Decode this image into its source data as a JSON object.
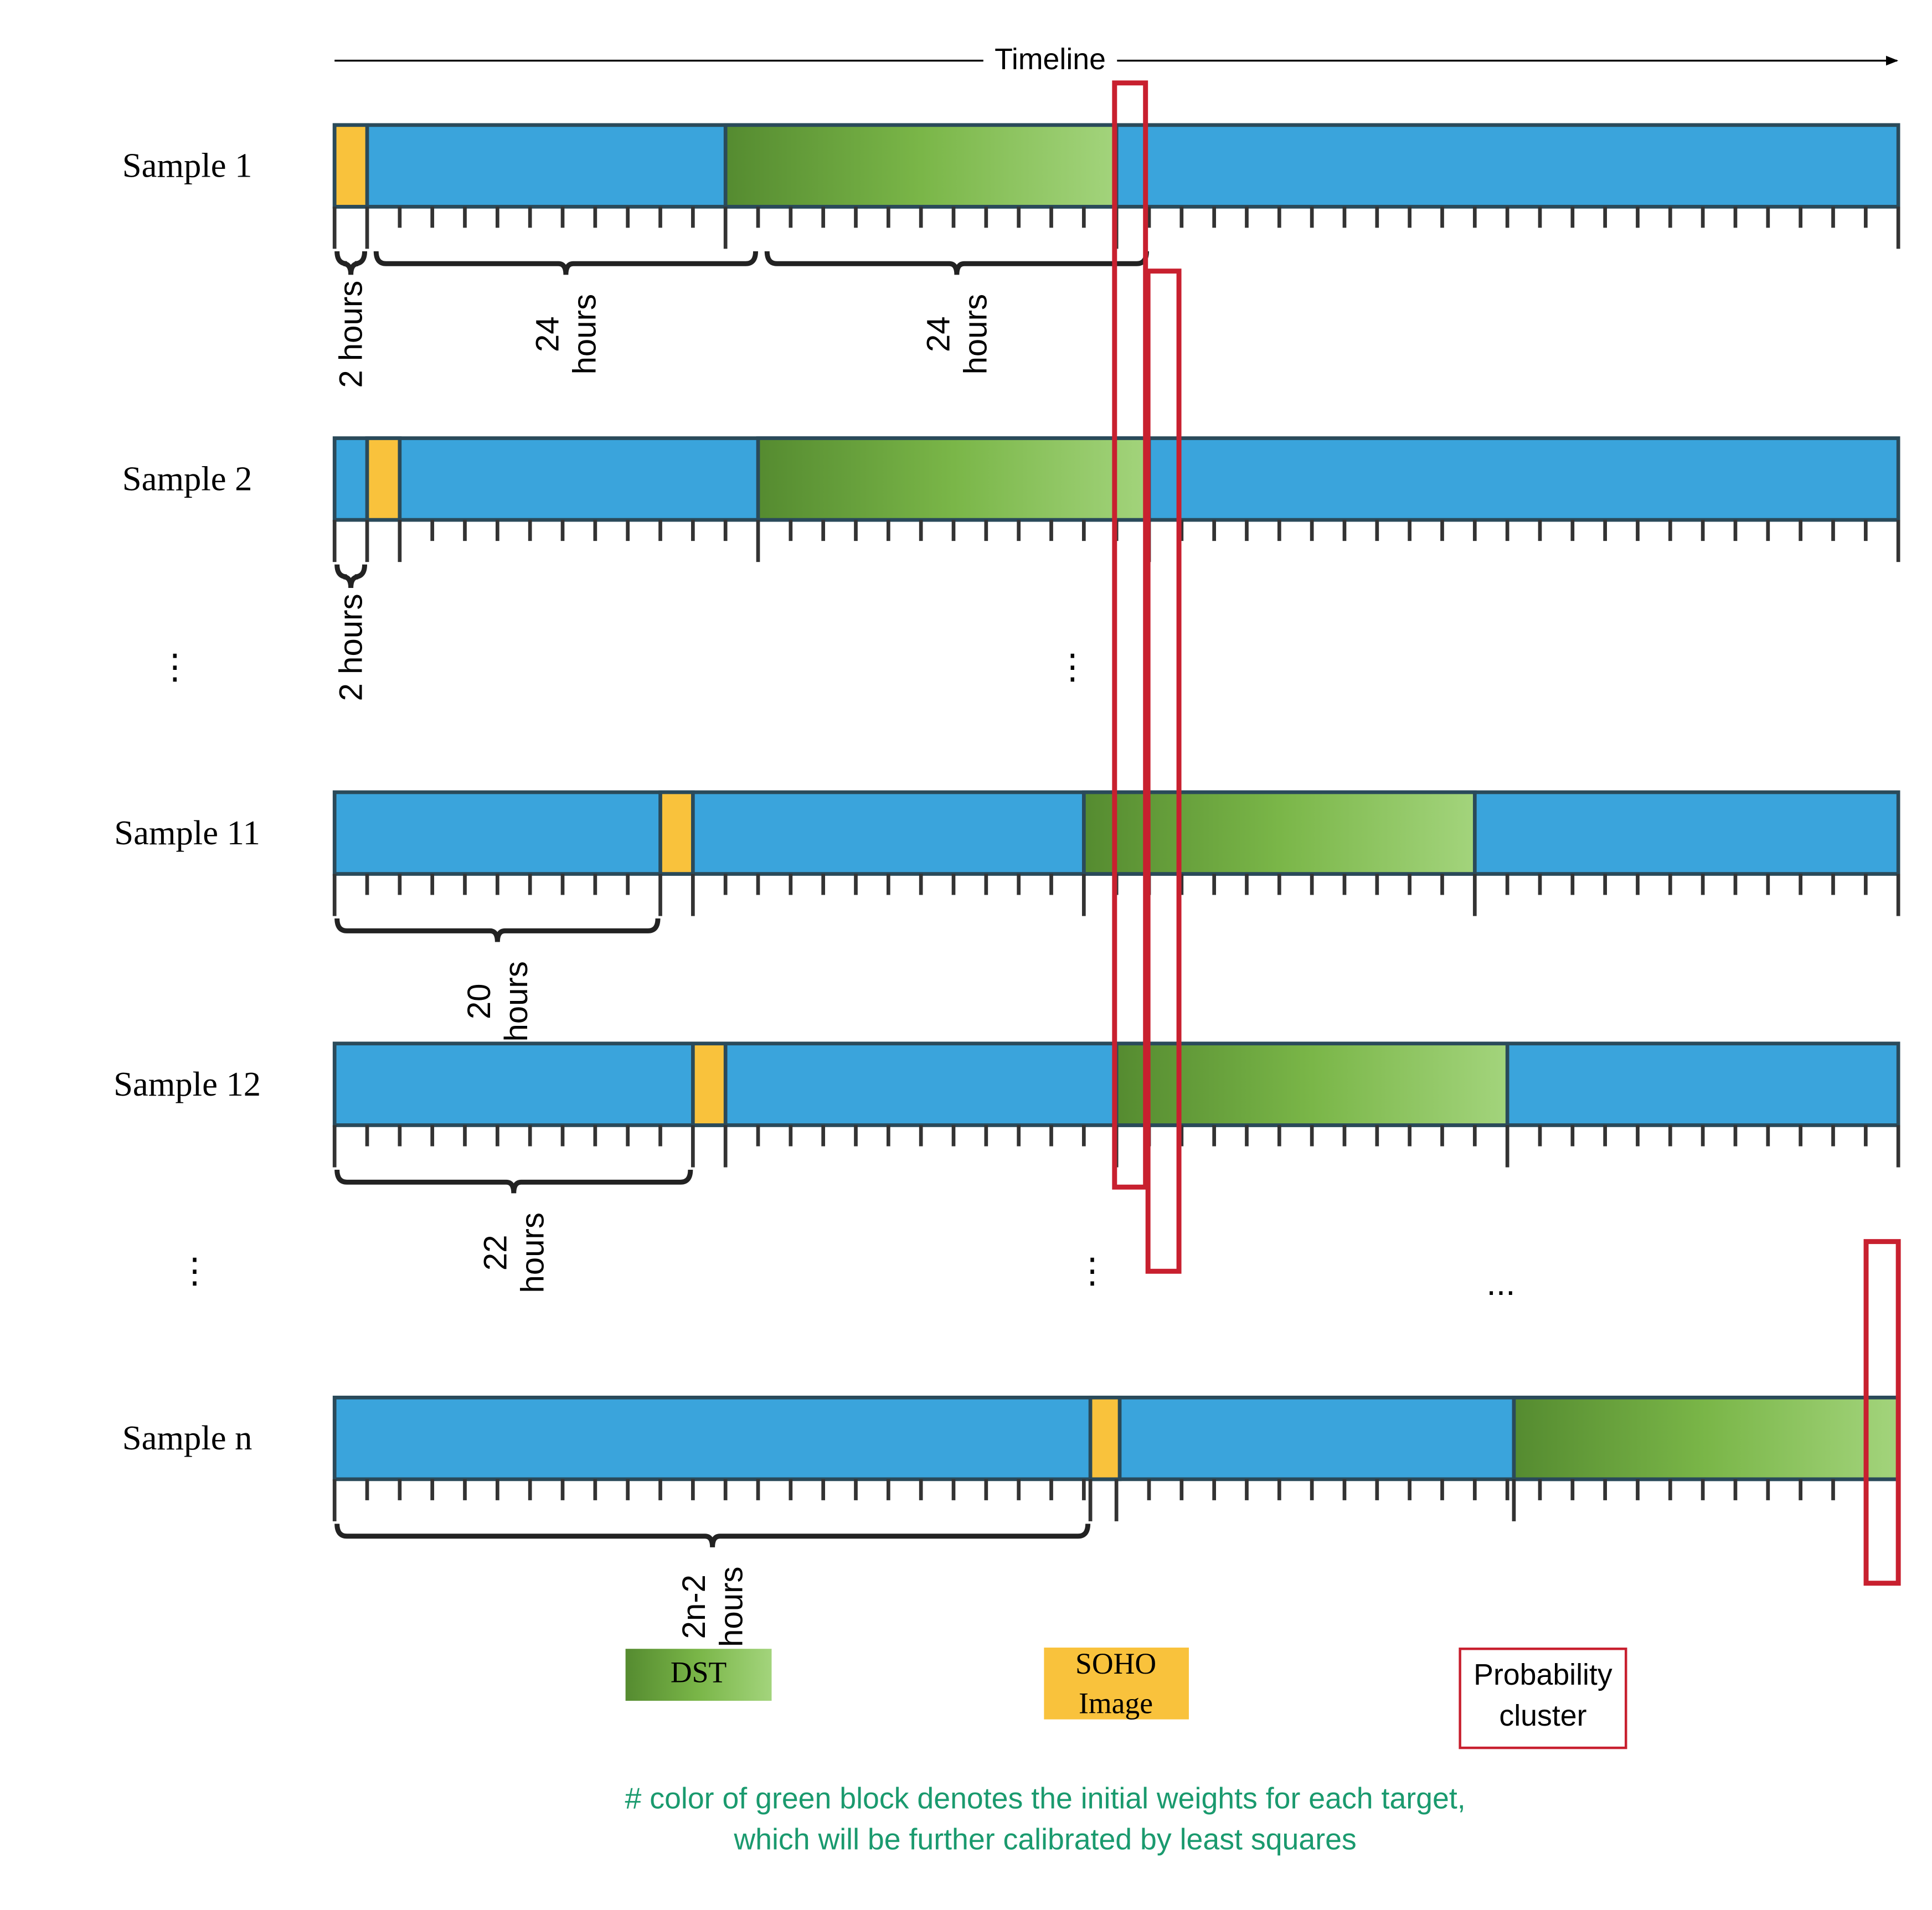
{
  "timeline": {
    "label": "Timeline"
  },
  "samples": [
    {
      "id": "s1",
      "label": "Sample 1",
      "soho": [
        0,
        1
      ],
      "dst": [
        12,
        24
      ]
    },
    {
      "id": "s2",
      "label": "Sample 2",
      "soho": [
        1,
        2
      ],
      "dst": [
        13,
        25
      ]
    },
    {
      "id": "s11",
      "label": "Sample 11",
      "soho": [
        10,
        11
      ],
      "dst": [
        23,
        35
      ]
    },
    {
      "id": "s12",
      "label": "Sample 12",
      "soho": [
        11,
        12
      ],
      "dst": [
        24,
        36
      ]
    },
    {
      "id": "sn",
      "label": "Sample n",
      "soho": [
        23.2,
        24.1
      ],
      "dst": [
        36.2,
        48.5
      ]
    }
  ],
  "braces": [
    {
      "sample": "s1",
      "range": [
        0,
        1
      ],
      "text": [
        "2 hours"
      ]
    },
    {
      "sample": "s1",
      "range": [
        1.2,
        13
      ],
      "text": [
        "24",
        "hours"
      ]
    },
    {
      "sample": "s1",
      "range": [
        13.2,
        25
      ],
      "text": [
        "24",
        "hours"
      ]
    },
    {
      "sample": "s2",
      "range": [
        0,
        1
      ],
      "text": [
        "2 hours"
      ]
    },
    {
      "sample": "s11",
      "range": [
        0,
        10
      ],
      "text": [
        "20",
        "hours"
      ]
    },
    {
      "sample": "s12",
      "range": [
        0,
        11
      ],
      "text": [
        "22",
        "hours"
      ]
    },
    {
      "sample": "sn",
      "range": [
        0,
        23.2
      ],
      "text": [
        "2n-2",
        "hours"
      ]
    }
  ],
  "ellipses": {
    "vertical": "⋮",
    "horizontal": "..."
  },
  "legend": {
    "dst": "DST",
    "soho": [
      "SOHO",
      "Image"
    ],
    "probability": [
      "Probability",
      "cluster"
    ]
  },
  "note": [
    "# color of green block denotes the initial weights for each target,",
    "which will be further calibrated by least squares"
  ],
  "colors": {
    "blue": "#3aa4dc",
    "soho": "#f9c23c",
    "dst_dark": "#558b30",
    "dst_mid": "#7ab648",
    "dst_light": "#a3d47c",
    "probability": "#c8202f",
    "note": "#1a9a6e"
  }
}
